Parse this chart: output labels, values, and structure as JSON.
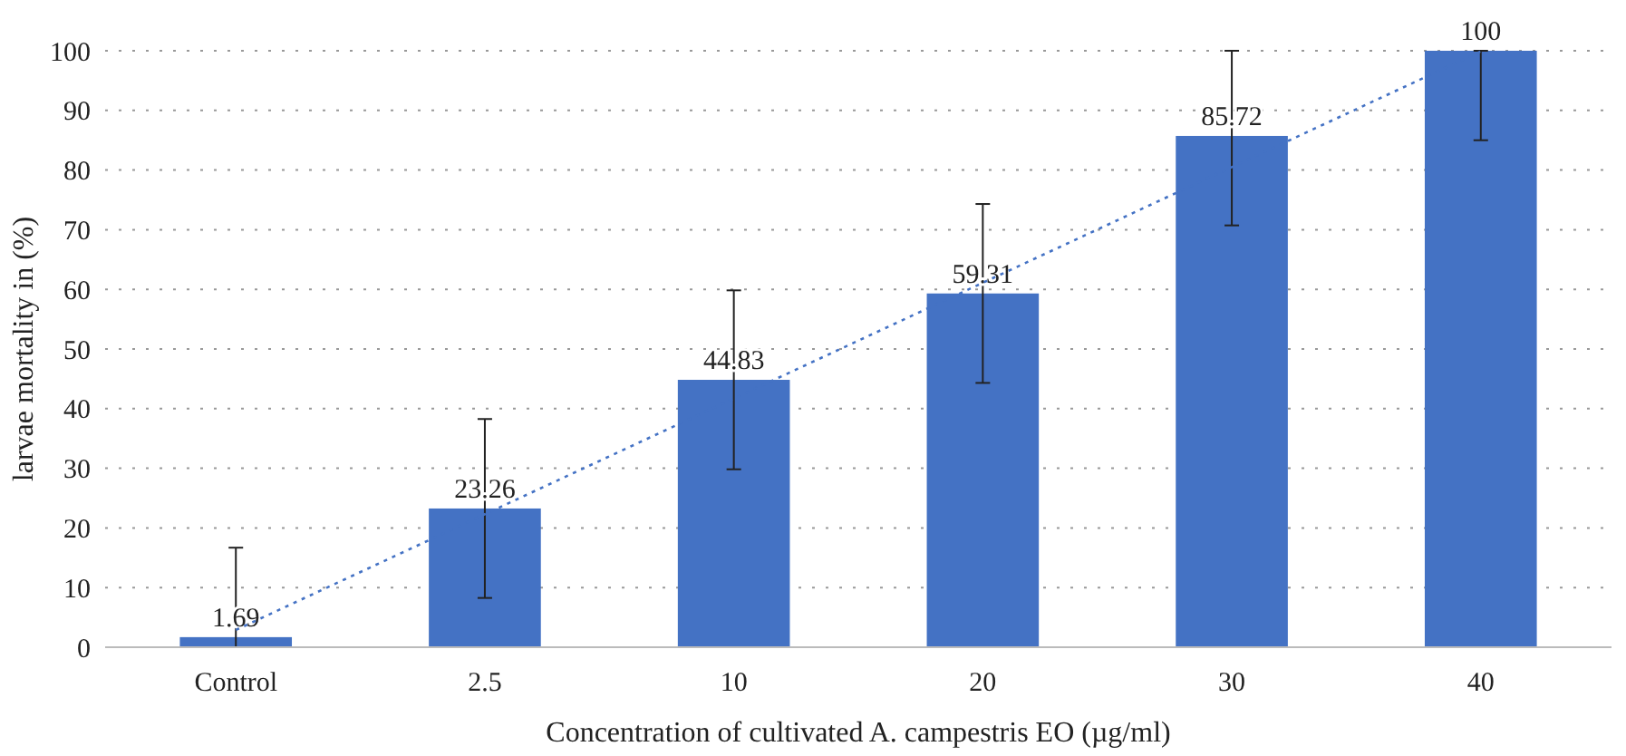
{
  "chart_data": {
    "type": "bar",
    "xlabel": "Concentration of cultivated A. campestris EO (µg/ml)",
    "ylabel": "larvae mortality in (%)",
    "categories": [
      "Control",
      "2.5",
      "10",
      "20",
      "30",
      "40"
    ],
    "series": [
      {
        "color": "#4472c4",
        "values": [
          1.69,
          23.26,
          44.83,
          59.31,
          85.72,
          100
        ],
        "value_labels": [
          "1.69",
          "23.26",
          "44.83",
          "59.31",
          "85.72",
          "100"
        ],
        "errors": [
          [
            0,
            16.69
          ],
          [
            8.26,
            38.26
          ],
          [
            29.83,
            59.83
          ],
          [
            44.31,
            74.31
          ],
          [
            70.72,
            100
          ],
          [
            85,
            100
          ]
        ]
      },
      {
        "type": "line",
        "color": "#4472c4",
        "line_style": "dotted",
        "values": [
          2.9,
          22.3,
          41.7,
          61.1,
          80.5,
          99.9
        ]
      }
    ],
    "ylim": [
      0,
      100
    ],
    "yticks": [
      0,
      10,
      20,
      30,
      40,
      50,
      60,
      70,
      80,
      90,
      100
    ],
    "grid": "y"
  }
}
